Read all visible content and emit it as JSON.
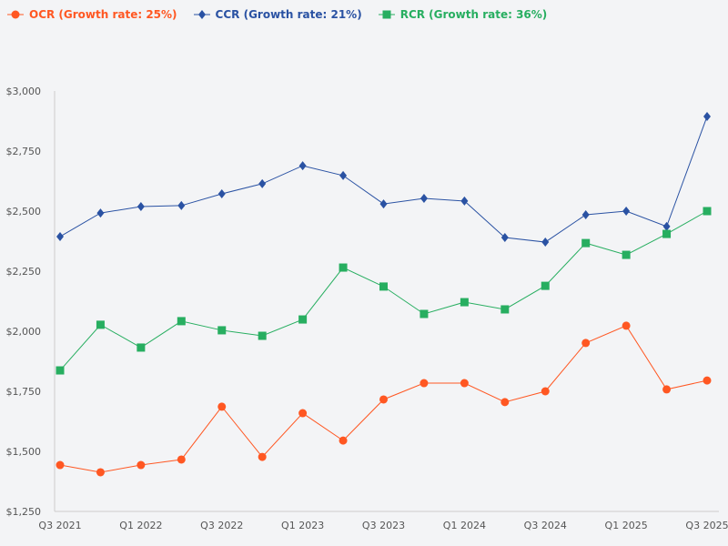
{
  "chart_data": {
    "type": "line",
    "title": "",
    "xlabel": "",
    "ylabel": "",
    "ylim": [
      1250,
      3000
    ],
    "yticks": [
      "$1,250",
      "$1,500",
      "$1,750",
      "$2,000",
      "$2,250",
      "$2,500",
      "$2,750",
      "$3,000"
    ],
    "ytick_values": [
      1250,
      1500,
      1750,
      2000,
      2250,
      2500,
      2750,
      3000
    ],
    "categories": [
      "Q3 2021",
      "Q4 2021",
      "Q1 2022",
      "Q2 2022",
      "Q3 2022",
      "Q4 2022",
      "Q1 2023",
      "Q2 2023",
      "Q3 2023",
      "Q4 2023",
      "Q1 2024",
      "Q2 2024",
      "Q3 2024",
      "Q4 2024",
      "Q1 2025",
      "Q2 2025",
      "Q3 2025"
    ],
    "xtick_labels": [
      "Q3 2021",
      "",
      "Q1 2022",
      "",
      "Q3 2022",
      "",
      "Q1 2023",
      "",
      "Q3 2023",
      "",
      "Q1 2024",
      "",
      "Q3 2024",
      "",
      "Q1 2025",
      "",
      "Q3 2025"
    ],
    "grid": false,
    "legend_placement": "top-left",
    "series": [
      {
        "name": "OCR (Growth rate: 25%)",
        "color": "#ff5722",
        "marker": "circle",
        "values": [
          1443,
          1413,
          1443,
          1466,
          1686,
          1477,
          1659,
          1545,
          1716,
          1784,
          1784,
          1705,
          1750,
          1951,
          2023,
          1758,
          1795
        ]
      },
      {
        "name": "CCR (Growth rate: 21%)",
        "color": "#2a52a3",
        "marker": "diamond",
        "values": [
          2394,
          2492,
          2519,
          2523,
          2572,
          2614,
          2689,
          2648,
          2530,
          2553,
          2542,
          2390,
          2371,
          2485,
          2500,
          2436,
          2894
        ]
      },
      {
        "name": "RCR (Growth rate: 36%)",
        "color": "#27ae60",
        "marker": "square",
        "values": [
          1837,
          2027,
          1932,
          2042,
          2004,
          1981,
          2049,
          2265,
          2186,
          2072,
          2121,
          2091,
          2189,
          2367,
          2318,
          2405,
          2500
        ]
      }
    ]
  }
}
